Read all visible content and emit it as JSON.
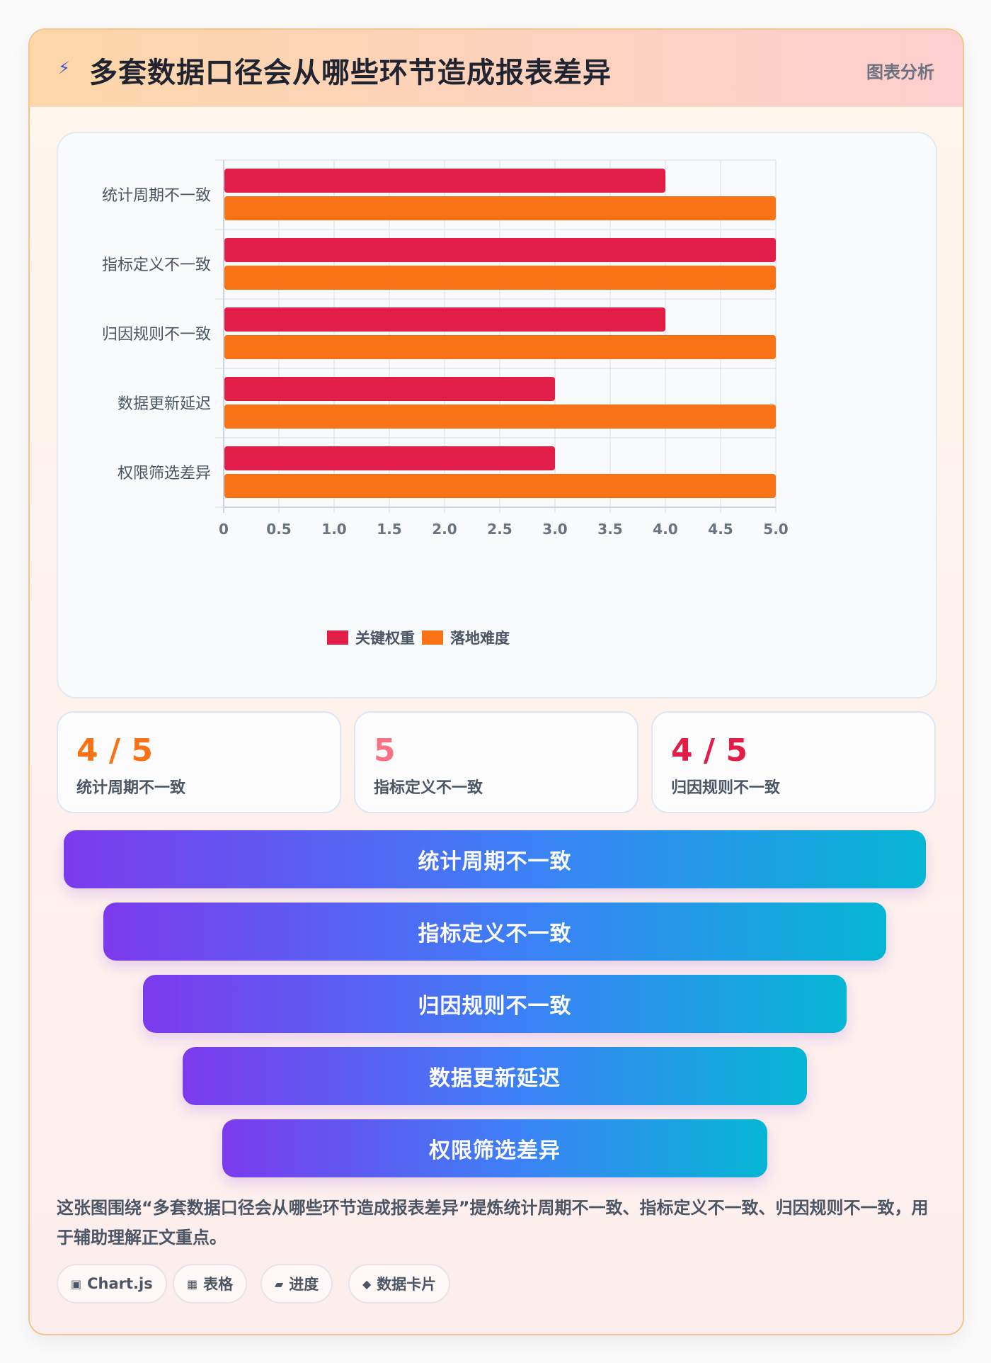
{
  "header": {
    "icon": "lightning-icon",
    "title": "多套数据口径会从哪些环节造成报表差异",
    "tag": "图表分析"
  },
  "chart_data": {
    "type": "bar",
    "orientation": "horizontal",
    "categories": [
      "统计周期不一致",
      "指标定义不一致",
      "归因规则不一致",
      "数据更新延迟",
      "权限筛选差异"
    ],
    "series": [
      {
        "name": "关键权重",
        "color": "#e11d48",
        "values": [
          4,
          5,
          4,
          3,
          3
        ]
      },
      {
        "name": "落地难度",
        "color": "#f97316",
        "values": [
          5,
          5,
          5,
          5,
          5
        ]
      }
    ],
    "xlim": [
      0,
      5
    ],
    "xticks": [
      "0",
      "0.5",
      "1.0",
      "1.5",
      "2.0",
      "2.5",
      "3.0",
      "3.5",
      "4.0",
      "4.5",
      "5.0"
    ],
    "grid": true,
    "legend": "bottom-center",
    "title": "",
    "xlabel": "",
    "ylabel": ""
  },
  "stats": [
    {
      "value": "4 / 5",
      "label": "统计周期不一致",
      "color": "#f97316"
    },
    {
      "value": "5",
      "label": "指标定义不一致",
      "color": "#f87185"
    },
    {
      "value": "4 / 5",
      "label": "归因规则不一致",
      "color": "#e11d48"
    }
  ],
  "funnel": [
    "统计周期不一致",
    "指标定义不一致",
    "归因规则不一致",
    "数据更新延迟",
    "权限筛选差异"
  ],
  "description": "这张图围绕“多套数据口径会从哪些环节造成报表差异”提炼统计周期不一致、指标定义不一致、归因规则不一致，用于辅助理解正文重点。",
  "chips": [
    {
      "icon": "square-icon",
      "glyph": "▣",
      "label": "Chart.js"
    },
    {
      "icon": "table-icon",
      "glyph": "▦",
      "label": "表格"
    },
    {
      "icon": "progress-icon",
      "glyph": "▰",
      "label": "进度"
    },
    {
      "icon": "diamond-icon",
      "glyph": "◆",
      "label": "数据卡片"
    }
  ]
}
